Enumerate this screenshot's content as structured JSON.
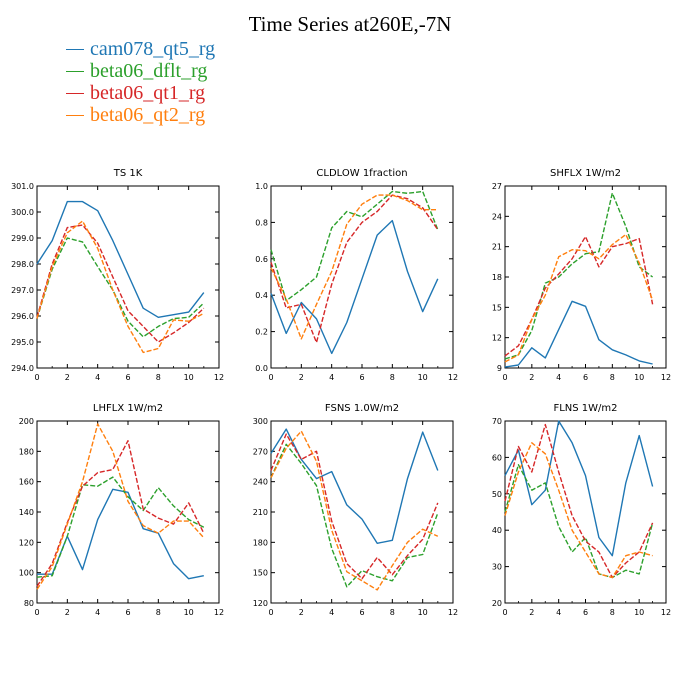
{
  "title": "Time Series at260E,-7N",
  "legend": [
    {
      "name": "cam078_qt5_rg",
      "color": "#1f77b4"
    },
    {
      "name": "beta06_dflt_rg",
      "color": "#2ca02c"
    },
    {
      "name": "beta06_qt1_rg",
      "color": "#d62728"
    },
    {
      "name": "beta06_qt2_rg",
      "color": "#ff7f0e"
    }
  ],
  "chart_data": [
    {
      "type": "line",
      "title": "TS   1K",
      "xlim": [
        0,
        12
      ],
      "ylim": [
        294,
        301
      ],
      "xticks": [
        0,
        2,
        4,
        6,
        8,
        10,
        12
      ],
      "yticks": [
        294,
        295,
        296,
        297,
        298,
        299,
        300,
        301
      ],
      "ytick_decimals": 1,
      "x": [
        0,
        1,
        2,
        3,
        4,
        5,
        6,
        7,
        8,
        9,
        10,
        11
      ],
      "series": [
        {
          "values": [
            298.0,
            298.9,
            300.4,
            300.4,
            300.05,
            298.9,
            297.6,
            296.3,
            295.95,
            296.05,
            296.15,
            296.9
          ],
          "dash": false
        },
        {
          "values": [
            295.9,
            297.8,
            299.0,
            298.85,
            297.9,
            297.0,
            295.8,
            295.2,
            295.6,
            295.9,
            295.95,
            296.5
          ],
          "dash": true
        },
        {
          "values": [
            295.95,
            298.0,
            299.4,
            299.5,
            298.8,
            297.5,
            296.2,
            295.6,
            295.0,
            295.35,
            295.75,
            296.3
          ],
          "dash": true
        },
        {
          "values": [
            295.9,
            297.9,
            299.2,
            299.65,
            298.6,
            297.0,
            295.6,
            294.6,
            294.75,
            295.85,
            295.8,
            296.1
          ],
          "dash": true
        }
      ]
    },
    {
      "type": "line",
      "title": "CLDLOW   1fraction",
      "xlim": [
        0,
        12
      ],
      "ylim": [
        0,
        1
      ],
      "xticks": [
        0,
        2,
        4,
        6,
        8,
        10,
        12
      ],
      "yticks": [
        0,
        0.2,
        0.4,
        0.6,
        0.8,
        1.0
      ],
      "ytick_decimals": 1,
      "x": [
        0,
        1,
        2,
        3,
        4,
        5,
        6,
        7,
        8,
        9,
        10,
        11
      ],
      "series": [
        {
          "values": [
            0.41,
            0.19,
            0.36,
            0.27,
            0.08,
            0.25,
            0.49,
            0.73,
            0.81,
            0.53,
            0.31,
            0.49
          ],
          "dash": false
        },
        {
          "values": [
            0.65,
            0.37,
            0.43,
            0.5,
            0.77,
            0.86,
            0.83,
            0.9,
            0.97,
            0.96,
            0.97,
            0.76
          ],
          "dash": true
        },
        {
          "values": [
            0.58,
            0.33,
            0.35,
            0.14,
            0.46,
            0.69,
            0.8,
            0.86,
            0.95,
            0.93,
            0.88,
            0.76
          ],
          "dash": true
        },
        {
          "values": [
            0.55,
            0.38,
            0.16,
            0.35,
            0.53,
            0.79,
            0.9,
            0.95,
            0.95,
            0.92,
            0.87,
            0.87
          ],
          "dash": true
        }
      ]
    },
    {
      "type": "line",
      "title": "SHFLX   1W/m2",
      "xlim": [
        0,
        12
      ],
      "ylim": [
        9,
        27
      ],
      "xticks": [
        0,
        2,
        4,
        6,
        8,
        10,
        12
      ],
      "yticks": [
        9,
        12,
        15,
        18,
        21,
        24,
        27
      ],
      "ytick_decimals": 0,
      "x": [
        0,
        1,
        2,
        3,
        4,
        5,
        6,
        7,
        8,
        9,
        10,
        11
      ],
      "series": [
        {
          "values": [
            9.1,
            9.3,
            11.0,
            10.0,
            12.8,
            15.6,
            15.1,
            11.8,
            10.8,
            10.3,
            9.7,
            9.4
          ],
          "dash": false
        },
        {
          "values": [
            9.9,
            10.3,
            12.7,
            17.4,
            18.0,
            19.3,
            20.3,
            20.5,
            26.3,
            23.0,
            19.0,
            18.0
          ],
          "dash": true
        },
        {
          "values": [
            10.2,
            11.2,
            13.8,
            16.9,
            18.3,
            19.8,
            22.0,
            19.0,
            21.0,
            21.3,
            21.8,
            15.3
          ],
          "dash": true
        },
        {
          "values": [
            9.6,
            10.3,
            13.8,
            16.2,
            20.0,
            20.7,
            20.6,
            19.8,
            21.2,
            22.2,
            19.4,
            15.7
          ],
          "dash": true
        }
      ]
    },
    {
      "type": "line",
      "title": "LHFLX   1W/m2",
      "xlim": [
        0,
        12
      ],
      "ylim": [
        80,
        200
      ],
      "xticks": [
        0,
        2,
        4,
        6,
        8,
        10,
        12
      ],
      "yticks": [
        80,
        100,
        120,
        140,
        160,
        180,
        200
      ],
      "ytick_decimals": 0,
      "x": [
        0,
        1,
        2,
        3,
        4,
        5,
        6,
        7,
        8,
        9,
        10,
        11
      ],
      "series": [
        {
          "values": [
            99,
            99,
            124,
            102,
            135,
            155,
            153,
            129,
            126,
            106,
            96,
            98
          ],
          "dash": false
        },
        {
          "values": [
            97,
            98,
            124,
            158,
            157,
            163,
            150,
            141,
            156,
            144,
            135,
            130
          ],
          "dash": true
        },
        {
          "values": [
            91,
            106,
            133,
            157,
            166,
            168,
            187,
            142,
            136,
            132,
            146,
            126
          ],
          "dash": true
        },
        {
          "values": [
            89,
            104,
            132,
            160,
            198,
            180,
            147,
            131,
            126,
            134,
            134,
            123
          ],
          "dash": true
        }
      ]
    },
    {
      "type": "line",
      "title": "FSNS   1.0W/m2",
      "xlim": [
        0,
        12
      ],
      "ylim": [
        120,
        300
      ],
      "xticks": [
        0,
        2,
        4,
        6,
        8,
        10,
        12
      ],
      "yticks": [
        120,
        150,
        180,
        210,
        240,
        270,
        300
      ],
      "ytick_decimals": 0,
      "x": [
        0,
        1,
        2,
        3,
        4,
        5,
        6,
        7,
        8,
        9,
        10,
        11
      ],
      "series": [
        {
          "values": [
            268,
            292,
            262,
            243,
            250,
            217,
            203,
            179,
            182,
            243,
            289,
            251
          ],
          "dash": false
        },
        {
          "values": [
            244,
            277,
            258,
            236,
            174,
            136,
            152,
            146,
            142,
            165,
            168,
            209
          ],
          "dash": true
        },
        {
          "values": [
            251,
            287,
            262,
            270,
            201,
            159,
            144,
            165,
            148,
            167,
            183,
            219
          ],
          "dash": true
        },
        {
          "values": [
            244,
            273,
            290,
            260,
            192,
            151,
            142,
            133,
            157,
            180,
            193,
            186
          ],
          "dash": true
        }
      ]
    },
    {
      "type": "line",
      "title": "FLNS   1W/m2",
      "xlim": [
        0,
        12
      ],
      "ylim": [
        20,
        70
      ],
      "xticks": [
        0,
        2,
        4,
        6,
        8,
        10,
        12
      ],
      "yticks": [
        20,
        30,
        40,
        50,
        60,
        70
      ],
      "ytick_decimals": 0,
      "x": [
        0,
        1,
        2,
        3,
        4,
        5,
        6,
        7,
        8,
        9,
        10,
        11
      ],
      "series": [
        {
          "values": [
            55,
            62,
            47,
            51,
            70,
            64,
            55,
            38,
            33,
            53,
            66,
            52
          ],
          "dash": false
        },
        {
          "values": [
            45,
            58,
            51,
            53,
            41,
            34,
            38,
            28,
            27,
            29,
            28,
            42
          ],
          "dash": true
        },
        {
          "values": [
            48,
            63,
            56,
            69,
            56,
            44,
            37,
            34,
            27,
            31,
            34,
            42
          ],
          "dash": true
        },
        {
          "values": [
            44,
            56,
            64,
            61,
            51,
            40,
            34,
            28,
            27,
            33,
            34,
            33
          ],
          "dash": true
        }
      ]
    }
  ]
}
